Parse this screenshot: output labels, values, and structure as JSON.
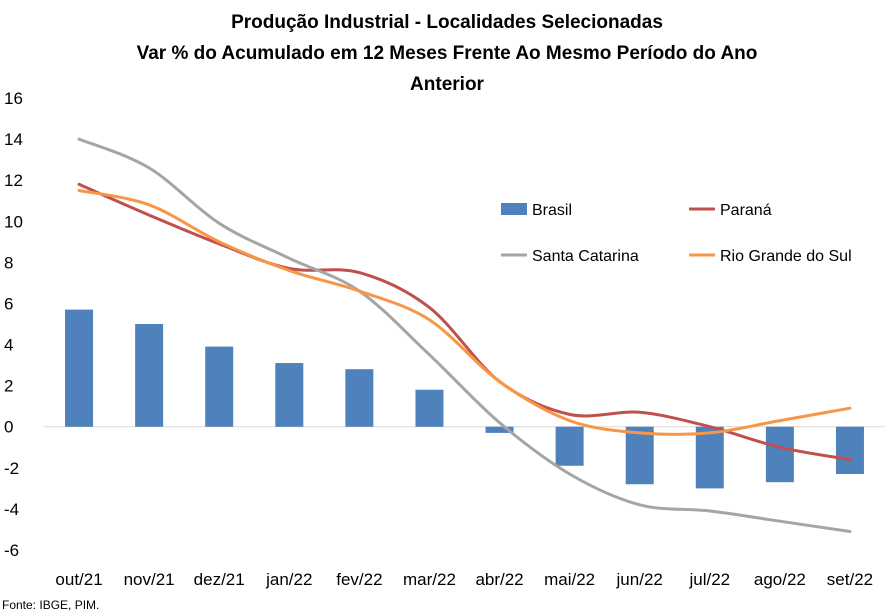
{
  "chart_data": {
    "type": "bar",
    "title_lines": [
      "Produção Industrial - Localidades Selecionadas",
      "Var % do Acumulado em 12 Meses Frente Ao Mesmo Período do Ano",
      "Anterior"
    ],
    "categories": [
      "out/21",
      "nov/21",
      "dez/21",
      "jan/22",
      "fev/22",
      "mar/22",
      "abr/22",
      "mai/22",
      "jun/22",
      "jul/22",
      "ago/22",
      "set/22"
    ],
    "ylim": [
      -6,
      16
    ],
    "yticks": [
      "-6",
      "-4",
      "-2",
      "0",
      "2",
      "4",
      "6",
      "8",
      "10",
      "12",
      "14",
      "16"
    ],
    "grid": false,
    "legend_position": "right, inside plot",
    "series": [
      {
        "name": "Brasil",
        "type": "bar",
        "color": "#4F81BD",
        "values": [
          5.7,
          5.0,
          3.9,
          3.1,
          2.8,
          1.8,
          -0.3,
          -1.9,
          -2.8,
          -3.0,
          -2.7,
          -2.3
        ]
      },
      {
        "name": "Paraná",
        "type": "line",
        "color": "#C0504D",
        "values": [
          11.8,
          10.3,
          8.9,
          7.7,
          7.5,
          5.8,
          2.2,
          0.6,
          0.7,
          0.0,
          -1.0,
          -1.6
        ]
      },
      {
        "name": "Santa Catarina",
        "type": "line",
        "color": "#A5A5A5",
        "values": [
          14.0,
          12.6,
          9.9,
          8.2,
          6.6,
          3.5,
          0.2,
          -2.3,
          -3.8,
          -4.1,
          -4.6,
          -5.1
        ]
      },
      {
        "name": "Rio Grande do Sul",
        "type": "line",
        "color": "#F79646",
        "values": [
          11.5,
          10.8,
          9.0,
          7.6,
          6.6,
          5.2,
          2.2,
          0.3,
          -0.3,
          -0.3,
          0.3,
          0.9
        ]
      }
    ],
    "source": "Fonte: IBGE, PIM."
  }
}
